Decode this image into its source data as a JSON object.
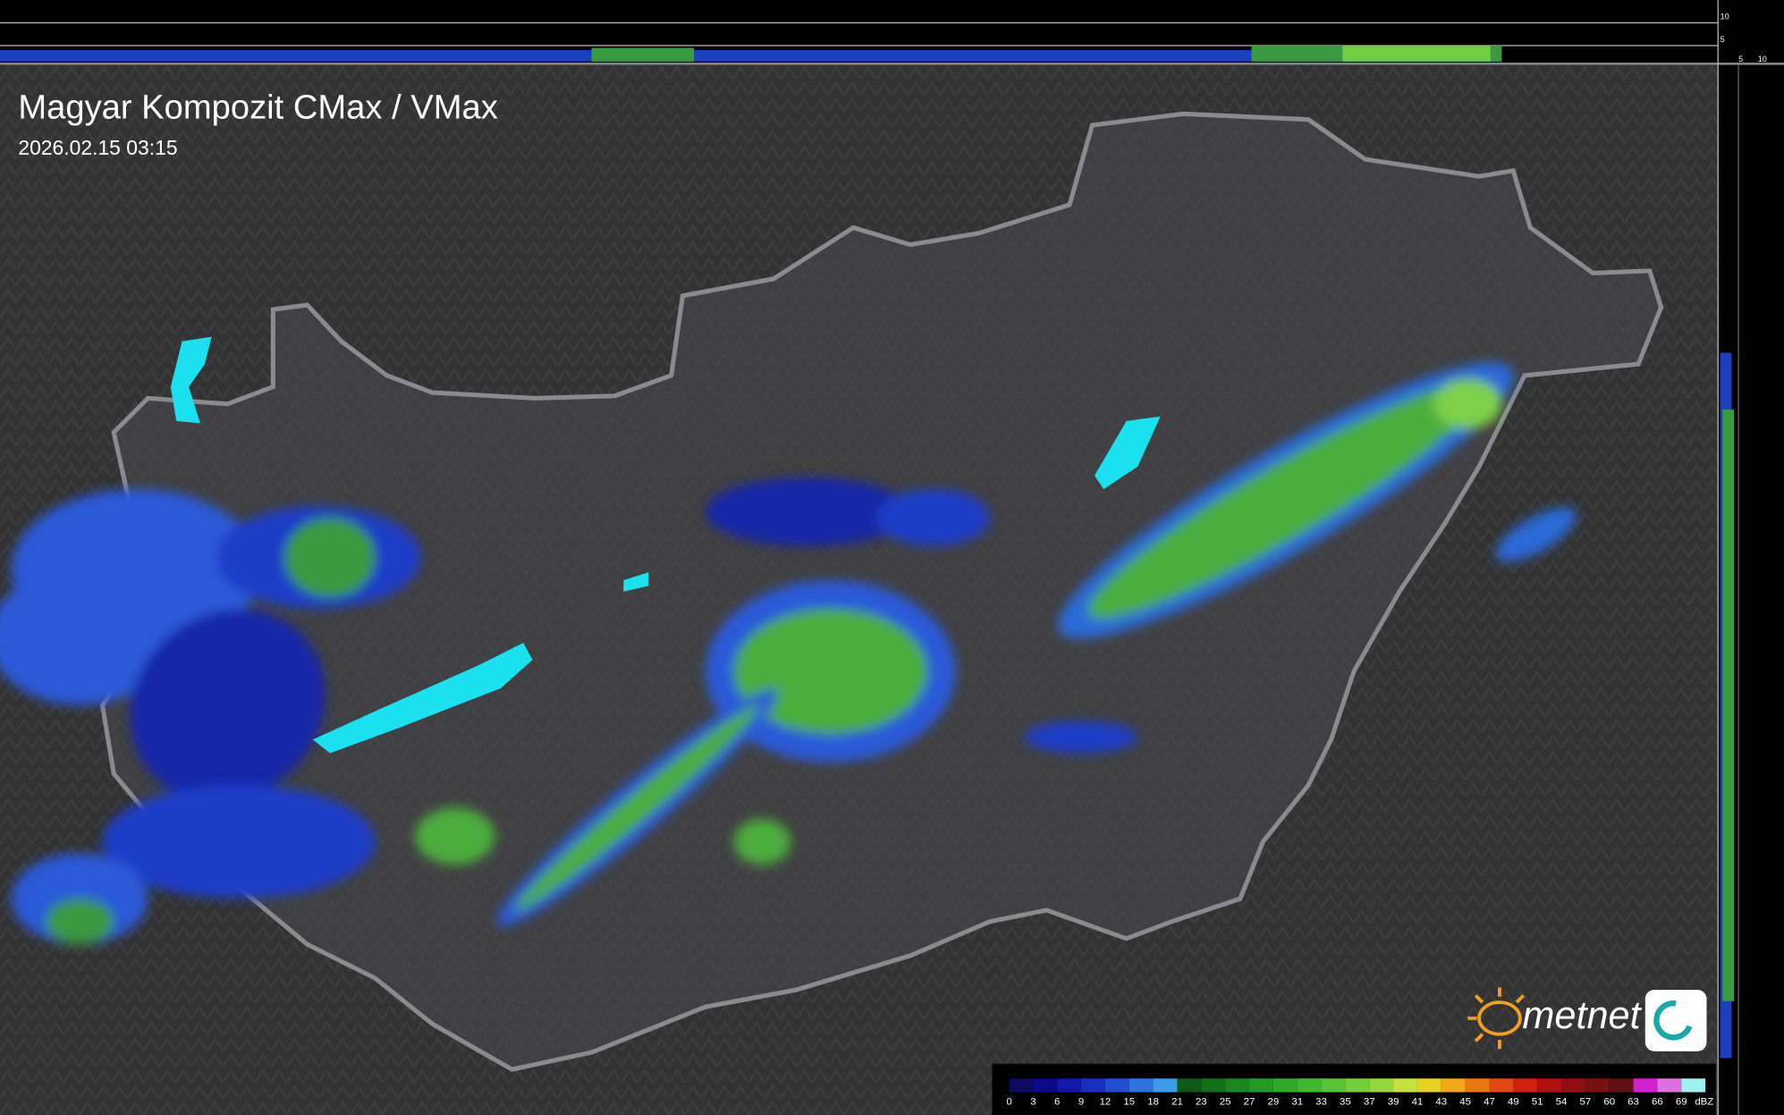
{
  "title": "Magyar Kompozit CMax / VMax",
  "timestamp": "2026.02.15 03:15",
  "logo": "metnet",
  "top_profile": {
    "ticks": [
      10,
      5
    ]
  },
  "side_profile": {
    "ticks": [
      5,
      10
    ]
  },
  "legend": {
    "ticks": [
      0,
      3,
      6,
      9,
      12,
      15,
      18,
      21,
      23,
      25,
      27,
      29,
      31,
      33,
      35,
      37,
      39,
      41,
      43,
      45,
      47,
      49,
      51,
      54,
      57,
      60,
      63,
      66,
      69
    ],
    "unit": "dBZ"
  }
}
